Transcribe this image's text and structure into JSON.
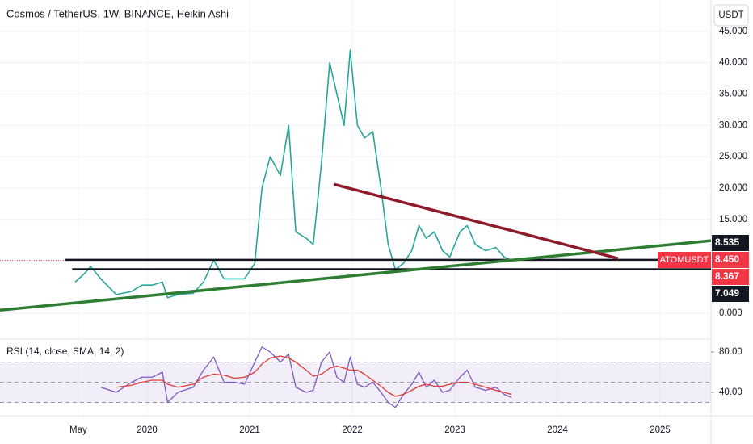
{
  "chart_data": [
    {
      "type": "line",
      "title": "Cosmos / TetherUS, 1W, BINANCE, Heikin Ashi",
      "currency": "USDT",
      "x": [
        2019.3,
        2019.4,
        2019.45,
        2019.55,
        2019.7,
        2019.85,
        2019.95,
        2020.05,
        2020.15,
        2020.2,
        2020.3,
        2020.45,
        2020.55,
        2020.65,
        2020.75,
        2020.85,
        2020.95,
        2021.05,
        2021.12,
        2021.2,
        2021.3,
        2021.38,
        2021.45,
        2021.55,
        2021.62,
        2021.7,
        2021.78,
        2021.85,
        2021.92,
        2021.98,
        2022.05,
        2022.12,
        2022.2,
        2022.28,
        2022.35,
        2022.42,
        2022.5,
        2022.58,
        2022.65,
        2022.72,
        2022.8,
        2022.88,
        2022.95,
        2023.05,
        2023.12,
        2023.2,
        2023.3,
        2023.4,
        2023.48,
        2023.55
      ],
      "series": [
        {
          "name": "ATOMUSDT",
          "color": "#26a69a",
          "values": [
            5,
            6.5,
            7.5,
            5.5,
            3,
            3.5,
            4.5,
            4.5,
            5,
            2.5,
            3,
            3.2,
            5,
            8.5,
            5.5,
            5.5,
            5.5,
            8,
            20,
            25,
            22,
            30,
            13,
            12,
            11,
            24,
            40,
            35,
            30,
            42,
            30,
            28,
            29,
            20,
            11,
            7,
            8,
            10,
            14,
            12,
            13,
            10,
            9,
            13,
            14,
            11,
            10,
            10.5,
            9,
            8.45
          ]
        }
      ],
      "last_price": {
        "value": 8.45,
        "label": "8.450",
        "color": "#f23645"
      },
      "price_labels": [
        {
          "value": 8.535,
          "label": "8.535",
          "color": "#131722"
        },
        {
          "value": 8.367,
          "label": "8.367",
          "color": "#f23645"
        },
        {
          "value": 7.049,
          "label": "7.049",
          "color": "#131722"
        }
      ],
      "levels": [
        {
          "value": 8.535,
          "from": 2019.2,
          "color": "#131722"
        },
        {
          "value": 7.049,
          "from": 2019.27,
          "color": "#131722"
        }
      ],
      "trendlines": [
        {
          "color": "#2e7d32",
          "points": [
            [
              2018.567,
              0.5
            ],
            [
              2025.496,
              11.6
            ]
          ]
        },
        {
          "color": "#8e1b2a",
          "points": [
            [
              2021.82,
              20.6
            ],
            [
              2024.59,
              8.76
            ]
          ]
        }
      ],
      "xlim": [
        2018.567,
        2025.496
      ],
      "xticks": [
        {
          "value": 2019.33,
          "label": "May"
        },
        2020,
        2021,
        2022,
        2023,
        2024,
        2025
      ],
      "ylim": [
        -4.1,
        50
      ],
      "yticks": [
        {
          "value": 0,
          "label": "0.000"
        },
        {
          "value": 15,
          "label": "15.000"
        },
        {
          "value": 20,
          "label": "20.000"
        },
        {
          "value": 25,
          "label": "25.000"
        },
        {
          "value": 30,
          "label": "30.000"
        },
        {
          "value": 35,
          "label": "35.000"
        },
        {
          "value": 40,
          "label": "40.000"
        },
        {
          "value": 45,
          "label": "45.000"
        }
      ]
    },
    {
      "type": "line",
      "title": "RSI (14, close, SMA, 14, 2)",
      "series": [
        {
          "color": "#7e57c2",
          "values": [
            null,
            null,
            null,
            45,
            40,
            50,
            55,
            55,
            60,
            30,
            40,
            45,
            62,
            75,
            50,
            50,
            48,
            70,
            85,
            80,
            70,
            78,
            45,
            40,
            42,
            70,
            80,
            55,
            50,
            75,
            48,
            45,
            50,
            40,
            30,
            25,
            38,
            48,
            60,
            45,
            52,
            40,
            42,
            55,
            62,
            45,
            42,
            45,
            38,
            35
          ]
        },
        {
          "color": "#e53935",
          "values": [
            null,
            null,
            null,
            null,
            45,
            47,
            50,
            52,
            52,
            48,
            45,
            48,
            55,
            58,
            57,
            54,
            55,
            60,
            68,
            74,
            76,
            74,
            70,
            62,
            56,
            58,
            64,
            66,
            64,
            62,
            62,
            58,
            52,
            46,
            40,
            36,
            38,
            42,
            46,
            48,
            46,
            46,
            48,
            50,
            50,
            48,
            45,
            42,
            40,
            38
          ]
        }
      ],
      "bands": [
        70,
        50,
        30
      ],
      "ylim": [
        16.8,
        92.8
      ],
      "yticks": [
        {
          "value": 80,
          "label": "80.00"
        },
        {
          "value": 40,
          "label": "40.00"
        }
      ]
    }
  ]
}
